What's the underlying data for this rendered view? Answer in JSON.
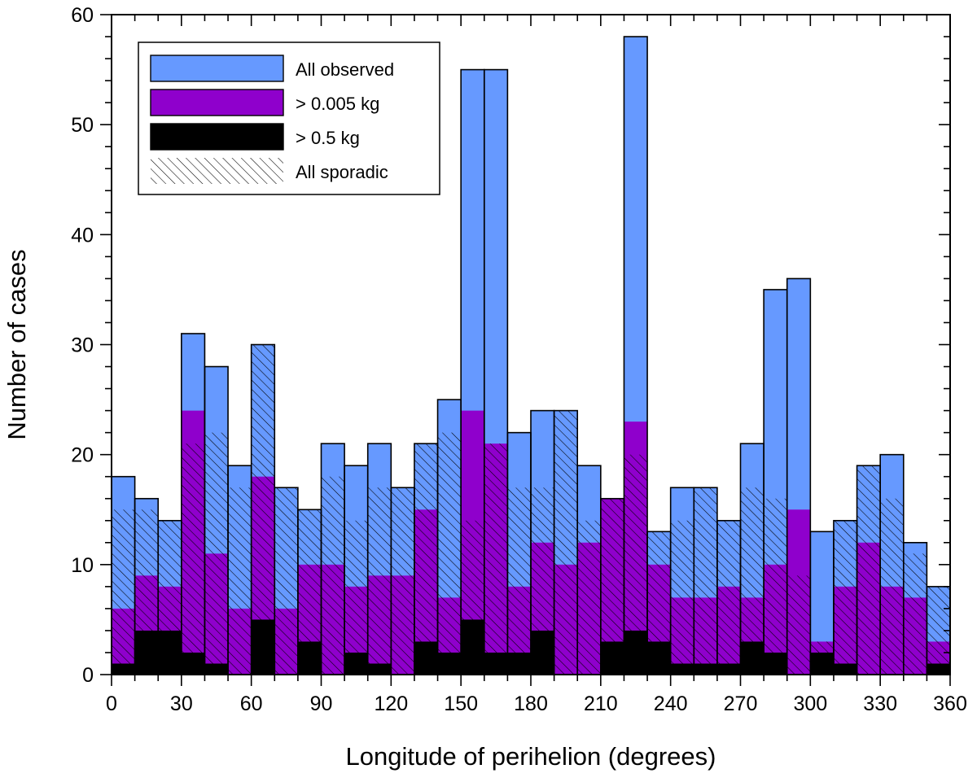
{
  "chart_data": {
    "type": "bar",
    "xlabel": "Longitude of perihelion (degrees)",
    "ylabel": "Number of cases",
    "xlim": [
      0,
      360
    ],
    "ylim": [
      0,
      60
    ],
    "bin_width": 10,
    "x_ticks": [
      "0",
      "30",
      "60",
      "90",
      "120",
      "150",
      "180",
      "210",
      "240",
      "270",
      "300",
      "330",
      "360"
    ],
    "y_ticks": [
      "0",
      "10",
      "20",
      "30",
      "40",
      "50",
      "60"
    ],
    "bin_starts": [
      0,
      10,
      20,
      30,
      40,
      50,
      60,
      70,
      80,
      90,
      100,
      110,
      120,
      130,
      140,
      150,
      160,
      170,
      180,
      190,
      200,
      210,
      220,
      230,
      240,
      250,
      260,
      270,
      280,
      290,
      300,
      310,
      320,
      330,
      340,
      350
    ],
    "series": [
      {
        "name": "All observed",
        "values": [
          18,
          16,
          14,
          31,
          28,
          19,
          30,
          17,
          15,
          21,
          19,
          21,
          17,
          21,
          25,
          55,
          55,
          22,
          24,
          24,
          19,
          16,
          58,
          13,
          17,
          17,
          14,
          21,
          35,
          36,
          13,
          14,
          19,
          20,
          12,
          8
        ]
      },
      {
        "name": "> 0.005 kg",
        "values": [
          6,
          9,
          8,
          24,
          11,
          6,
          18,
          6,
          10,
          10,
          8,
          9,
          9,
          15,
          7,
          24,
          21,
          8,
          12,
          10,
          12,
          16,
          23,
          10,
          7,
          7,
          8,
          7,
          10,
          15,
          3,
          8,
          12,
          8,
          7,
          3
        ]
      },
      {
        "name": "> 0.5 kg",
        "values": [
          1,
          4,
          4,
          2,
          1,
          0,
          5,
          0,
          3,
          0,
          2,
          1,
          0,
          3,
          2,
          5,
          2,
          2,
          4,
          0,
          0,
          3,
          4,
          3,
          1,
          1,
          1,
          3,
          2,
          0,
          2,
          1,
          0,
          0,
          0,
          1
        ]
      },
      {
        "name": "All sporadic",
        "values": [
          15,
          15,
          14,
          21,
          22,
          17,
          30,
          17,
          15,
          18,
          14,
          17,
          17,
          21,
          22,
          14,
          21,
          17,
          17,
          24,
          14,
          16,
          20,
          13,
          14,
          17,
          14,
          17,
          16,
          9,
          3,
          14,
          19,
          16,
          11,
          8
        ]
      }
    ],
    "colors": {
      "all_observed": "#6699FF",
      "gt_0005kg": "#8F00CC",
      "gt_05kg": "#000000",
      "hatch": "#000000"
    },
    "legend": {
      "placement": "top-left",
      "entries": [
        "All observed",
        "> 0.005 kg",
        "> 0.5 kg",
        "All sporadic"
      ]
    },
    "grid": false
  }
}
